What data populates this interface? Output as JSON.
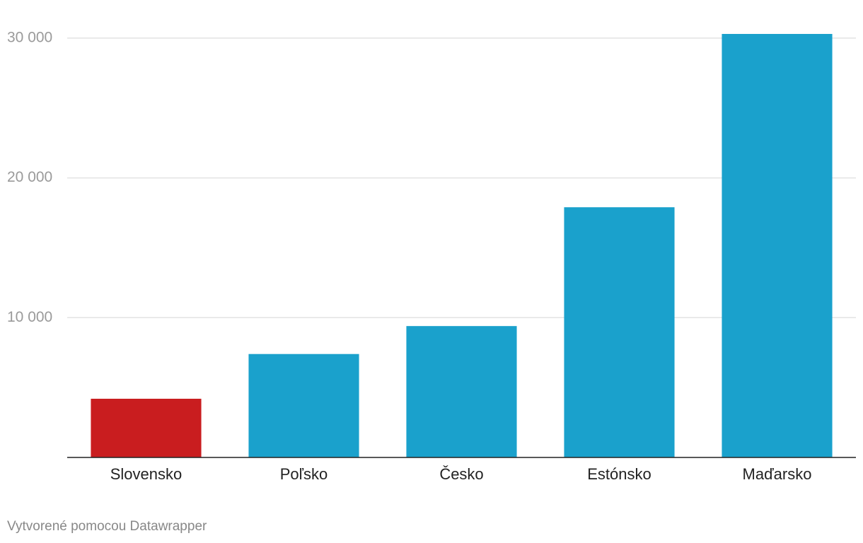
{
  "chart_data": {
    "type": "bar",
    "categories": [
      "Slovensko",
      "Poľsko",
      "Česko",
      "Estónsko",
      "Maďarsko"
    ],
    "values": [
      4200,
      7400,
      9400,
      17900,
      30300
    ],
    "colors": [
      "#c91d1f",
      "#1aa1cc",
      "#1aa1cc",
      "#1aa1cc",
      "#1aa1cc"
    ],
    "ylim": [
      0,
      30300
    ],
    "yticks": [
      {
        "value": 10000,
        "label": "10 000"
      },
      {
        "value": 20000,
        "label": "20 000"
      },
      {
        "value": 30000,
        "label": "30 000"
      }
    ],
    "grid": true,
    "source": "Vytvorené pomocou Datawrapper"
  }
}
